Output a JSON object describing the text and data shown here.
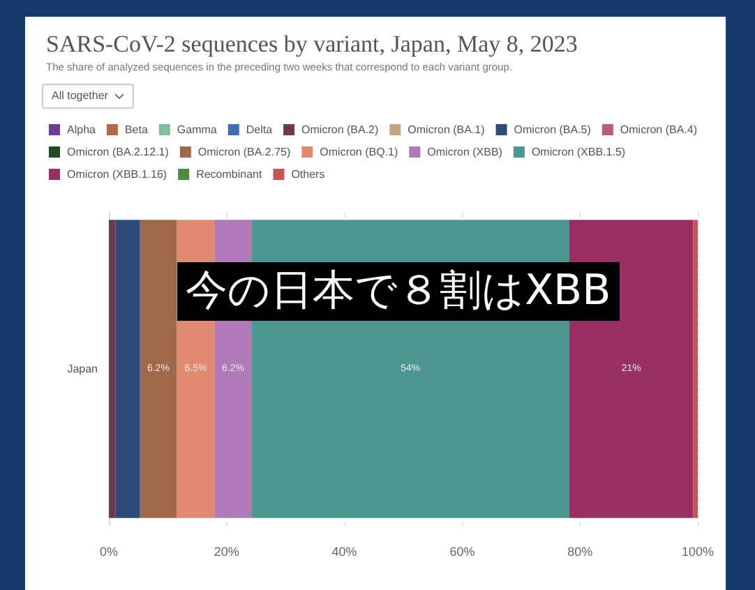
{
  "chart_data": {
    "type": "bar",
    "orientation": "horizontal",
    "stacked": true,
    "title": "SARS-CoV-2 sequences by variant, Japan, May 8, 2023",
    "subtitle": "The share of analyzed sequences in the preceding two weeks that correspond to each variant group.",
    "categories": [
      "Japan"
    ],
    "series": [
      {
        "name": "Alpha",
        "color": "#6d3e91",
        "values": [
          null
        ]
      },
      {
        "name": "Beta",
        "color": "#b36b45",
        "values": [
          null
        ]
      },
      {
        "name": "Gamma",
        "color": "#7fbf9e",
        "values": [
          null
        ]
      },
      {
        "name": "Delta",
        "color": "#3f6fb0",
        "values": [
          null
        ]
      },
      {
        "name": "Omicron (BA.2)",
        "color": "#6b3a4f",
        "values": [
          1.1
        ]
      },
      {
        "name": "Omicron (BA.1)",
        "color": "#c4a67e",
        "values": [
          null
        ]
      },
      {
        "name": "Omicron (BA.5)",
        "color": "#2c4a7a",
        "values": [
          4.2
        ]
      },
      {
        "name": "Omicron (BA.4)",
        "color": "#b8606e",
        "values": [
          null
        ]
      },
      {
        "name": "Omicron (BA.2.12.1)",
        "color": "#1f4a25",
        "values": [
          null
        ]
      },
      {
        "name": "Omicron (BA.2.75)",
        "color": "#a0684a",
        "values": [
          6.2
        ],
        "value_labels": [
          "6.2%"
        ]
      },
      {
        "name": "Omicron (BQ.1)",
        "color": "#e08a72",
        "values": [
          6.5
        ],
        "value_labels": [
          "6.5%"
        ]
      },
      {
        "name": "Omicron (XBB)",
        "color": "#b07ab8",
        "values": [
          6.2
        ],
        "value_labels": [
          "6.2%"
        ]
      },
      {
        "name": "Omicron (XBB.1.5)",
        "color": "#4e9690",
        "values": [
          54
        ],
        "value_labels": [
          "54%"
        ]
      },
      {
        "name": "Omicron (XBB.1.16)",
        "color": "#9a3062",
        "values": [
          21
        ],
        "value_labels": [
          "21%"
        ]
      },
      {
        "name": "Recombinant",
        "color": "#4f8a3c",
        "values": [
          null
        ]
      },
      {
        "name": "Others",
        "color": "#c45656",
        "values": [
          0.8
        ]
      }
    ],
    "xlim": [
      0,
      100
    ],
    "xticks": [
      {
        "value": 0,
        "label": "0%"
      },
      {
        "value": 20,
        "label": "20%"
      },
      {
        "value": 40,
        "label": "40%"
      },
      {
        "value": 60,
        "label": "60%"
      },
      {
        "value": 80,
        "label": "80%"
      },
      {
        "value": 100,
        "label": "100%"
      }
    ],
    "grid": "x",
    "legend": "top",
    "annotations": [
      "All together",
      "今の日本で８割はXBB"
    ]
  }
}
